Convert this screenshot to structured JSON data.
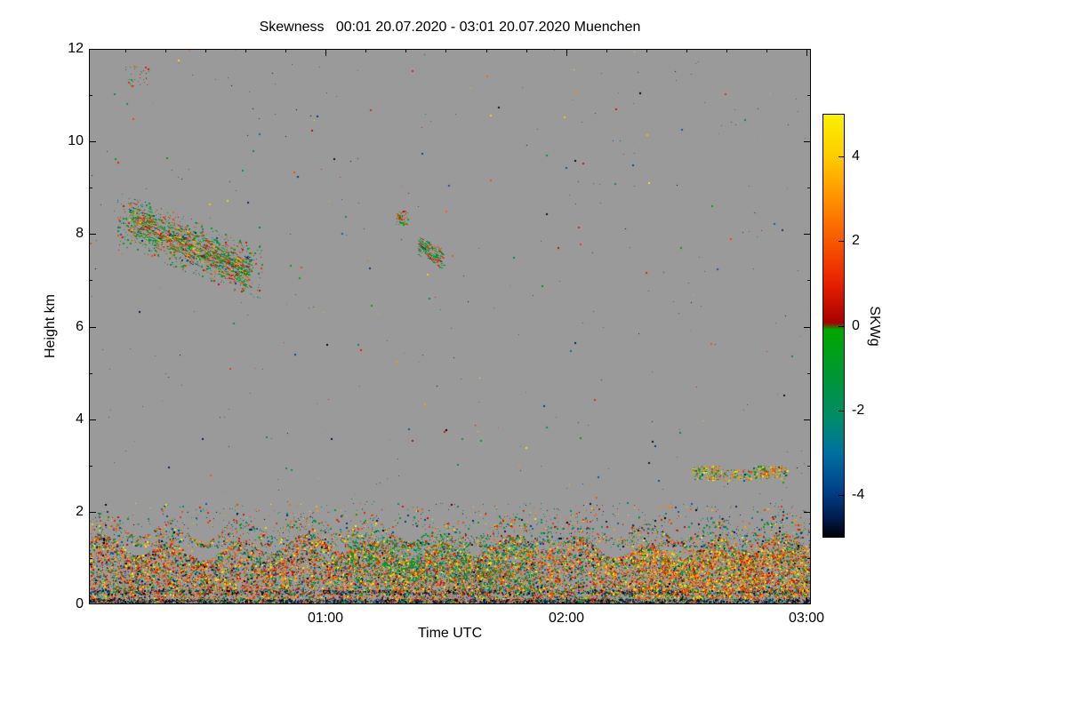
{
  "chart_data": {
    "type": "heatmap",
    "title": "Skewness   00:01 20.07.2020 - 03:01 20.07.2020 Muenchen",
    "xlabel": "Time UTC",
    "ylabel": "Height km",
    "x_range_minutes": [
      1,
      181
    ],
    "x_ticks": [
      {
        "minute": 60,
        "label": "01:00"
      },
      {
        "minute": 120,
        "label": "02:00"
      },
      {
        "minute": 180,
        "label": "03:00"
      }
    ],
    "x_minor_step_minutes": 10,
    "y_range_km": [
      0,
      12
    ],
    "y_ticks": [
      {
        "km": 0,
        "label": "0"
      },
      {
        "km": 2,
        "label": "2"
      },
      {
        "km": 4,
        "label": "4"
      },
      {
        "km": 6,
        "label": "6"
      },
      {
        "km": 8,
        "label": "8"
      },
      {
        "km": 10,
        "label": "10"
      },
      {
        "km": 12,
        "label": "12"
      }
    ],
    "y_minor_step_km": 1,
    "background_color": "#9a9a9a",
    "colorbar": {
      "label": "SKWg",
      "range": [
        -5,
        5
      ],
      "ticks": [
        {
          "v": 4,
          "label": "4"
        },
        {
          "v": 2,
          "label": "2"
        },
        {
          "v": 0,
          "label": "0"
        },
        {
          "v": -2,
          "label": "-2"
        },
        {
          "v": -4,
          "label": "-4"
        }
      ],
      "stops": [
        {
          "v": 5,
          "c": "#f8f200"
        },
        {
          "v": 4,
          "c": "#ffcc00"
        },
        {
          "v": 3,
          "c": "#ff9000"
        },
        {
          "v": 2,
          "c": "#f85800"
        },
        {
          "v": 1,
          "c": "#e82000"
        },
        {
          "v": 0.08,
          "c": "#a80000"
        },
        {
          "v": -0.08,
          "c": "#00a800"
        },
        {
          "v": -1.2,
          "c": "#009634"
        },
        {
          "v": -2.2,
          "c": "#008c6c"
        },
        {
          "v": -3.0,
          "c": "#0070a0"
        },
        {
          "v": -3.9,
          "c": "#004088"
        },
        {
          "v": -4.5,
          "c": "#001e50"
        },
        {
          "v": -5,
          "c": "#000000"
        }
      ]
    },
    "features": [
      {
        "name": "surface-layer",
        "t": [
          1,
          181
        ],
        "h": [
          0,
          1.25
        ],
        "density": 0.32,
        "style": "dots",
        "wavy": 0.3,
        "values": [
          {
            "v": [
              0.3,
              2.2
            ],
            "w": 0.38
          },
          {
            "v": [
              2.2,
              4.2
            ],
            "w": 0.18
          },
          {
            "v": [
              4.2,
              5
            ],
            "w": 0.08
          },
          {
            "v": [
              -2.2,
              -0.2
            ],
            "w": 0.18
          },
          {
            "v": [
              -3.5,
              -2.2
            ],
            "w": 0.08
          },
          {
            "v": [
              -5,
              -3.5
            ],
            "w": 0.1
          }
        ]
      },
      {
        "name": "surface-ground-dark-band",
        "t": [
          1,
          181
        ],
        "h": [
          0,
          0.12
        ],
        "density": 0.55,
        "style": "dots",
        "values": [
          {
            "v": [
              -5,
              -3.8
            ],
            "w": 0.7
          },
          {
            "v": [
              0.5,
              2.5
            ],
            "w": 0.15
          },
          {
            "v": [
              -2,
              -0.3
            ],
            "w": 0.15
          }
        ]
      },
      {
        "name": "surface-dark-streak",
        "t": [
          1,
          181
        ],
        "h": [
          0.22,
          0.32
        ],
        "density": 0.28,
        "style": "dots",
        "values": [
          {
            "v": [
              -5,
              -3.5
            ],
            "w": 0.6
          },
          {
            "v": [
              0.5,
              2.5
            ],
            "w": 0.25
          },
          {
            "v": [
              -2,
              -0.3
            ],
            "w": 0.15
          }
        ]
      },
      {
        "name": "surface-top-band",
        "t": [
          1,
          181
        ],
        "h": [
          1.25,
          1.7
        ],
        "density": 0.1,
        "style": "dots",
        "wavy": 0.35,
        "values": [
          {
            "v": [
              0.3,
              2.5
            ],
            "w": 0.3
          },
          {
            "v": [
              2.5,
              5
            ],
            "w": 0.18
          },
          {
            "v": [
              -2.5,
              -0.2
            ],
            "w": 0.3
          },
          {
            "v": [
              -5,
              -2.5
            ],
            "w": 0.22
          }
        ]
      },
      {
        "name": "surface-sparse-band",
        "t": [
          1,
          181
        ],
        "h": [
          1.6,
          2.2
        ],
        "density": 0.022,
        "style": "dots",
        "values": [
          {
            "v": [
              0.3,
              2.5
            ],
            "w": 0.3
          },
          {
            "v": [
              2.5,
              5
            ],
            "w": 0.15
          },
          {
            "v": [
              -2.5,
              -0.2
            ],
            "w": 0.3
          },
          {
            "v": [
              -5,
              -2.5
            ],
            "w": 0.25
          }
        ]
      },
      {
        "name": "surface-green-patch-1",
        "t": [
          66,
          96
        ],
        "h": [
          0.5,
          1.45
        ],
        "density": 0.16,
        "style": "dots",
        "wavy": 0.2,
        "values": [
          {
            "v": [
              -2.5,
              -0.2
            ],
            "w": 0.75
          },
          {
            "v": [
              0.5,
              2.5
            ],
            "w": 0.15
          },
          {
            "v": [
              3,
              5
            ],
            "w": 0.1
          }
        ]
      },
      {
        "name": "surface-green-patch-2",
        "t": [
          98,
          112
        ],
        "h": [
          0.3,
          1.3
        ],
        "density": 0.12,
        "style": "dots",
        "values": [
          {
            "v": [
              -2.5,
              -0.2
            ],
            "w": 0.75
          },
          {
            "v": [
              0.5,
              2.5
            ],
            "w": 0.25
          }
        ]
      },
      {
        "name": "surface-warm-patch-right",
        "t": [
          136,
          181
        ],
        "h": [
          0.15,
          1.2
        ],
        "density": 0.16,
        "style": "dots",
        "values": [
          {
            "v": [
              2.5,
              5
            ],
            "w": 0.45
          },
          {
            "v": [
              0.5,
              2.5
            ],
            "w": 0.4
          },
          {
            "v": [
              -2,
              -0.3
            ],
            "w": 0.15
          }
        ]
      },
      {
        "name": "cloud-band-8km",
        "t": [
          11,
          41
        ],
        "h": [
          7.9,
          8.75
        ],
        "dh": -1.15,
        "density": 0.15,
        "style": "streaks",
        "values": [
          {
            "v": [
              -1.8,
              -0.1
            ],
            "w": 0.45
          },
          {
            "v": [
              0.3,
              2.2
            ],
            "w": 0.33
          },
          {
            "v": [
              2.2,
              4.6
            ],
            "w": 0.14
          },
          {
            "v": [
              -4.5,
              -2
            ],
            "w": 0.08
          }
        ]
      },
      {
        "name": "cloud-band-8km-halo",
        "t": [
          8,
          44
        ],
        "h": [
          7.75,
          8.95
        ],
        "dh": -1.2,
        "density": 0.05,
        "style": "dots",
        "values": [
          {
            "v": [
              -1.8,
              -0.1
            ],
            "w": 0.5
          },
          {
            "v": [
              0.3,
              2.2
            ],
            "w": 0.35
          },
          {
            "v": [
              -4.5,
              -2
            ],
            "w": 0.15
          }
        ]
      },
      {
        "name": "cloud-fragment-a",
        "t": [
          77.5,
          80.5
        ],
        "h": [
          8.2,
          8.5
        ],
        "density": 0.3,
        "style": "dots",
        "values": [
          {
            "v": [
              -1.5,
              -0.1
            ],
            "w": 0.5
          },
          {
            "v": [
              0.3,
              2.2
            ],
            "w": 0.5
          }
        ]
      },
      {
        "name": "cloud-fragment-b",
        "t": [
          83,
          89
        ],
        "h": [
          7.55,
          8.05
        ],
        "dh": -0.35,
        "density": 0.18,
        "style": "streaks",
        "values": [
          {
            "v": [
              -1.8,
              -0.1
            ],
            "w": 0.5
          },
          {
            "v": [
              0.3,
              2.2
            ],
            "w": 0.35
          },
          {
            "v": [
              -4.5,
              -2
            ],
            "w": 0.15
          }
        ]
      },
      {
        "name": "layer-3km-a",
        "t": [
          151.5,
          158.5
        ],
        "h": [
          2.7,
          3.0
        ],
        "density": 0.35,
        "style": "dots",
        "values": [
          {
            "v": [
              1.2,
              3.6
            ],
            "w": 0.45
          },
          {
            "v": [
              -1.5,
              -0.2
            ],
            "w": 0.3
          },
          {
            "v": [
              3.6,
              5
            ],
            "w": 0.15
          },
          {
            "v": [
              -4.5,
              -2
            ],
            "w": 0.1
          }
        ]
      },
      {
        "name": "layer-3km-b",
        "t": [
          159,
          166
        ],
        "h": [
          2.68,
          2.92
        ],
        "density": 0.22,
        "style": "dots",
        "values": [
          {
            "v": [
              1.2,
              3.6
            ],
            "w": 0.45
          },
          {
            "v": [
              -1.5,
              -0.2
            ],
            "w": 0.3
          },
          {
            "v": [
              3.6,
              5
            ],
            "w": 0.15
          },
          {
            "v": [
              -4.5,
              -2
            ],
            "w": 0.1
          }
        ]
      },
      {
        "name": "layer-3km-c",
        "t": [
          166.5,
          175
        ],
        "h": [
          2.72,
          3.0
        ],
        "density": 0.33,
        "style": "dots",
        "values": [
          {
            "v": [
              1.2,
              3.6
            ],
            "w": 0.45
          },
          {
            "v": [
              -1.5,
              -0.2
            ],
            "w": 0.3
          },
          {
            "v": [
              3.6,
              5
            ],
            "w": 0.15
          },
          {
            "v": [
              -4.5,
              -2
            ],
            "w": 0.1
          }
        ]
      },
      {
        "name": "noise-patch-top-left",
        "t": [
          10,
          16
        ],
        "h": [
          11.2,
          11.65
        ],
        "density": 0.05,
        "style": "dots",
        "values": [
          {
            "v": [
              -1.5,
              -0.2
            ],
            "w": 0.5
          },
          {
            "v": [
              0.3,
              2.2
            ],
            "w": 0.5
          }
        ]
      },
      {
        "name": "background-sparse-noise",
        "t": [
          1,
          181
        ],
        "h": [
          0,
          12
        ],
        "density": 0.0009,
        "style": "dots",
        "values": [
          {
            "v": [
              0.3,
              2.5
            ],
            "w": 0.3
          },
          {
            "v": [
              2.5,
              5
            ],
            "w": 0.12
          },
          {
            "v": [
              -2.5,
              -0.2
            ],
            "w": 0.33
          },
          {
            "v": [
              -5,
              -2.5
            ],
            "w": 0.25
          }
        ]
      }
    ]
  }
}
